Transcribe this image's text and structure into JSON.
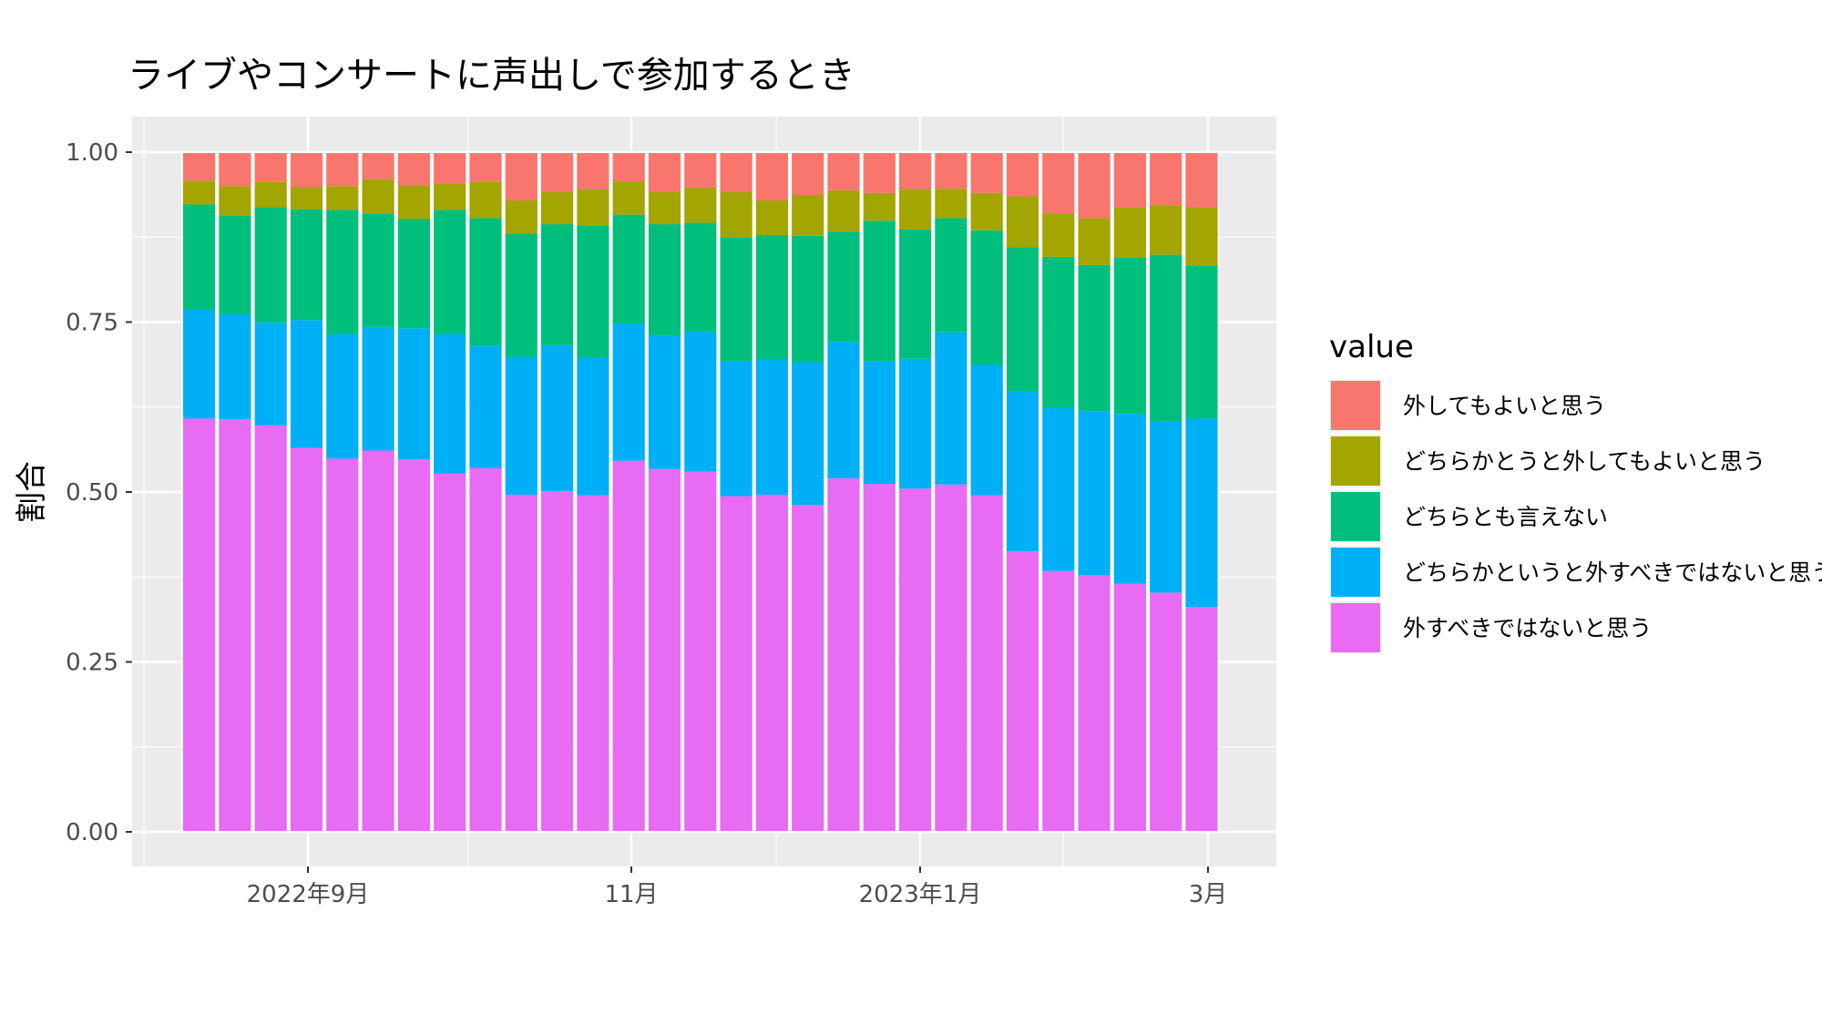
{
  "chart_data": {
    "type": "bar",
    "stacked": true,
    "title": "ライブやコンサートに声出しで参加するとき",
    "xlabel": "",
    "ylabel": "割合",
    "ylim": [
      0,
      1
    ],
    "yticks": [
      "0.00",
      "0.25",
      "0.50",
      "0.75",
      "1.00"
    ],
    "x_tick_labels": [
      "2022年9月",
      "11月",
      "2023年1月",
      "3月"
    ],
    "grid": true,
    "legend": {
      "title": "value",
      "position": "right"
    },
    "bar_count": 29,
    "series": [
      {
        "name": "外すべきではないと思う",
        "color": "#E76BF3",
        "values": [
          0.608,
          0.607,
          0.598,
          0.565,
          0.549,
          0.561,
          0.548,
          0.527,
          0.535,
          0.496,
          0.501,
          0.495,
          0.546,
          0.534,
          0.53,
          0.494,
          0.496,
          0.481,
          0.52,
          0.512,
          0.505,
          0.511,
          0.495,
          0.413,
          0.384,
          0.378,
          0.365,
          0.352,
          0.331
        ]
      },
      {
        "name": "どちらかというと外すべきではないと思う",
        "color": "#00B0F6",
        "values": [
          0.16,
          0.155,
          0.151,
          0.188,
          0.183,
          0.182,
          0.193,
          0.205,
          0.18,
          0.203,
          0.215,
          0.202,
          0.202,
          0.196,
          0.206,
          0.198,
          0.199,
          0.21,
          0.201,
          0.18,
          0.191,
          0.224,
          0.192,
          0.235,
          0.24,
          0.241,
          0.25,
          0.252,
          0.277
        ]
      },
      {
        "name": "どちらとも言えない",
        "color": "#00BF7D",
        "values": [
          0.155,
          0.145,
          0.17,
          0.163,
          0.183,
          0.167,
          0.161,
          0.183,
          0.188,
          0.181,
          0.178,
          0.195,
          0.16,
          0.164,
          0.16,
          0.182,
          0.183,
          0.186,
          0.162,
          0.207,
          0.19,
          0.168,
          0.198,
          0.212,
          0.222,
          0.215,
          0.23,
          0.245,
          0.225
        ]
      },
      {
        "name": "どちらかとうと外してもよいと思う",
        "color": "#A3A500",
        "values": [
          0.035,
          0.043,
          0.037,
          0.033,
          0.035,
          0.05,
          0.049,
          0.039,
          0.053,
          0.049,
          0.047,
          0.053,
          0.049,
          0.047,
          0.052,
          0.067,
          0.051,
          0.06,
          0.061,
          0.041,
          0.059,
          0.043,
          0.055,
          0.075,
          0.064,
          0.069,
          0.074,
          0.072,
          0.086
        ]
      },
      {
        "name": "外してもよいと思う",
        "color": "#F8766D",
        "values": [
          0.042,
          0.05,
          0.044,
          0.051,
          0.05,
          0.04,
          0.049,
          0.046,
          0.044,
          0.071,
          0.059,
          0.055,
          0.043,
          0.059,
          0.052,
          0.059,
          0.071,
          0.063,
          0.056,
          0.06,
          0.055,
          0.054,
          0.06,
          0.065,
          0.09,
          0.097,
          0.081,
          0.079,
          0.081
        ]
      }
    ]
  }
}
